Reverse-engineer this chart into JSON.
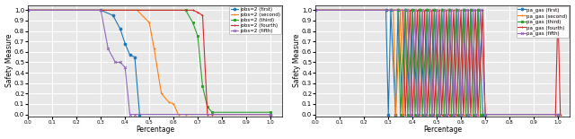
{
  "left_chart": {
    "xlabel": "Percentage",
    "ylabel": "Safety Measure",
    "xlim": [
      0.0,
      1.05
    ],
    "ylim": [
      -0.02,
      1.05
    ],
    "xticks": [
      0.0,
      0.1,
      0.2,
      0.3,
      0.4,
      0.5,
      0.6,
      0.7,
      0.8,
      0.9,
      1.0
    ],
    "yticks": [
      0.0,
      0.1,
      0.2,
      0.3,
      0.4,
      0.5,
      0.6,
      0.7,
      0.8,
      0.9,
      1.0
    ],
    "series": [
      {
        "label": "jobs=2 (first)",
        "color": "#1f77b4",
        "marker": "o",
        "x": [
          0.0,
          0.3,
          0.35,
          0.38,
          0.4,
          0.42,
          0.44,
          0.46,
          1.0
        ],
        "y": [
          1.0,
          1.0,
          0.95,
          0.82,
          0.68,
          0.57,
          0.55,
          0.0,
          0.0
        ]
      },
      {
        "label": "jobs=2 (second)",
        "color": "#ff7f0e",
        "marker": "+",
        "x": [
          0.0,
          0.45,
          0.5,
          0.52,
          0.55,
          0.58,
          0.6,
          0.62,
          0.65,
          1.0
        ],
        "y": [
          1.0,
          1.0,
          0.88,
          0.63,
          0.2,
          0.12,
          0.1,
          0.0,
          0.0,
          0.0
        ]
      },
      {
        "label": "jobs=2 (third)",
        "color": "#2ca02c",
        "marker": "s",
        "x": [
          0.0,
          0.65,
          0.68,
          0.7,
          0.72,
          0.74,
          0.76,
          1.0
        ],
        "y": [
          1.0,
          1.0,
          0.88,
          0.75,
          0.27,
          0.07,
          0.02,
          0.02
        ]
      },
      {
        "label": "jobs=2 (fourth)",
        "color": "#d62728",
        "marker": "+",
        "x": [
          0.0,
          0.68,
          0.7,
          0.72,
          0.74,
          0.76,
          1.0
        ],
        "y": [
          1.0,
          1.0,
          0.98,
          0.95,
          0.0,
          0.0,
          0.0
        ]
      },
      {
        "label": "jobs=2 (fifth)",
        "color": "#9467bd",
        "marker": "x",
        "x": [
          0.0,
          0.3,
          0.33,
          0.36,
          0.38,
          0.4,
          0.42,
          0.44,
          1.0
        ],
        "y": [
          1.0,
          1.0,
          0.63,
          0.5,
          0.5,
          0.45,
          0.0,
          0.0,
          0.0
        ]
      }
    ]
  },
  "right_chart": {
    "xlabel": "Percentage",
    "ylabel": "Safety Measure",
    "xlim": [
      0.0,
      1.05
    ],
    "ylim": [
      -0.02,
      1.05
    ],
    "xticks": [
      0.0,
      0.1,
      0.2,
      0.3,
      0.4,
      0.5,
      0.6,
      0.7,
      0.8,
      0.9,
      1.0
    ],
    "yticks": [
      0.0,
      0.1,
      0.2,
      0.3,
      0.4,
      0.5,
      0.6,
      0.7,
      0.8,
      0.9,
      1.0
    ],
    "series": [
      {
        "label": "pa_gas (first)",
        "color": "#1f77b4",
        "marker": "o",
        "x": [
          0.0,
          0.29,
          0.3,
          0.31,
          0.33,
          0.34,
          0.36,
          0.37,
          0.39,
          0.4,
          0.42,
          0.43,
          0.45,
          0.46,
          0.48,
          0.49,
          0.51,
          0.52,
          0.54,
          0.55,
          0.57,
          0.58,
          0.6,
          0.61,
          0.63,
          0.64,
          0.66,
          0.67,
          0.69,
          0.7,
          1.0
        ],
        "y": [
          1.0,
          1.0,
          0.0,
          1.0,
          0.0,
          1.0,
          0.0,
          1.0,
          0.0,
          1.0,
          0.0,
          1.0,
          0.0,
          1.0,
          0.0,
          1.0,
          0.0,
          1.0,
          0.0,
          1.0,
          0.0,
          1.0,
          0.0,
          1.0,
          0.0,
          1.0,
          0.0,
          1.0,
          0.0,
          0.0,
          0.0
        ]
      },
      {
        "label": "pa_gas (second)",
        "color": "#ff7f0e",
        "marker": "+",
        "x": [
          0.0,
          0.32,
          0.33,
          0.35,
          0.36,
          0.38,
          0.39,
          0.41,
          0.42,
          0.44,
          0.45,
          0.47,
          0.48,
          0.5,
          0.51,
          0.53,
          0.54,
          0.56,
          0.57,
          0.59,
          0.6,
          0.62,
          0.63,
          0.65,
          0.66,
          0.68,
          0.7,
          1.0
        ],
        "y": [
          1.0,
          1.0,
          0.0,
          1.0,
          0.0,
          1.0,
          0.0,
          1.0,
          0.0,
          1.0,
          0.0,
          1.0,
          0.0,
          1.0,
          0.0,
          1.0,
          0.0,
          1.0,
          0.0,
          1.0,
          0.0,
          1.0,
          0.0,
          1.0,
          0.0,
          1.0,
          0.0,
          0.0
        ]
      },
      {
        "label": "pa_gas (third)",
        "color": "#2ca02c",
        "marker": "s",
        "x": [
          0.0,
          0.34,
          0.35,
          0.37,
          0.38,
          0.4,
          0.41,
          0.43,
          0.44,
          0.46,
          0.47,
          0.49,
          0.5,
          0.52,
          0.53,
          0.55,
          0.56,
          0.58,
          0.59,
          0.61,
          0.62,
          0.64,
          0.65,
          0.67,
          0.68,
          0.7,
          1.0
        ],
        "y": [
          1.0,
          1.0,
          0.0,
          1.0,
          0.0,
          1.0,
          0.0,
          1.0,
          0.0,
          1.0,
          0.0,
          1.0,
          0.0,
          1.0,
          0.0,
          1.0,
          0.0,
          1.0,
          0.0,
          1.0,
          0.0,
          1.0,
          0.0,
          1.0,
          0.0,
          0.0,
          0.0
        ]
      },
      {
        "label": "pa_gas (fourth)",
        "color": "#d62728",
        "marker": "+",
        "x": [
          0.0,
          0.36,
          0.37,
          0.39,
          0.4,
          0.42,
          0.43,
          0.45,
          0.46,
          0.48,
          0.49,
          0.51,
          0.52,
          0.54,
          0.55,
          0.57,
          0.58,
          0.6,
          0.61,
          0.63,
          0.64,
          0.66,
          0.67,
          0.69,
          0.7,
          0.99,
          1.0,
          1.01
        ],
        "y": [
          1.0,
          1.0,
          0.0,
          1.0,
          0.0,
          1.0,
          0.0,
          1.0,
          0.0,
          1.0,
          0.0,
          1.0,
          0.0,
          1.0,
          0.0,
          1.0,
          0.0,
          1.0,
          0.0,
          1.0,
          0.0,
          1.0,
          0.0,
          1.0,
          0.0,
          0.0,
          1.0,
          0.0
        ]
      },
      {
        "label": "pa_gas (fifth)",
        "color": "#9467bd",
        "marker": "x",
        "x": [
          0.0,
          0.38,
          0.39,
          0.41,
          0.42,
          0.44,
          0.45,
          0.47,
          0.48,
          0.5,
          0.51,
          0.53,
          0.54,
          0.56,
          0.57,
          0.59,
          0.6,
          0.62,
          0.63,
          0.65,
          0.66,
          0.68,
          0.7,
          1.0
        ],
        "y": [
          1.0,
          1.0,
          0.0,
          1.0,
          0.0,
          1.0,
          0.0,
          1.0,
          0.0,
          1.0,
          0.0,
          1.0,
          0.0,
          1.0,
          0.0,
          1.0,
          0.0,
          1.0,
          0.0,
          1.0,
          0.0,
          1.0,
          0.0,
          0.0
        ]
      }
    ]
  },
  "background_color": "#e8e8e8",
  "grid_color": "white"
}
